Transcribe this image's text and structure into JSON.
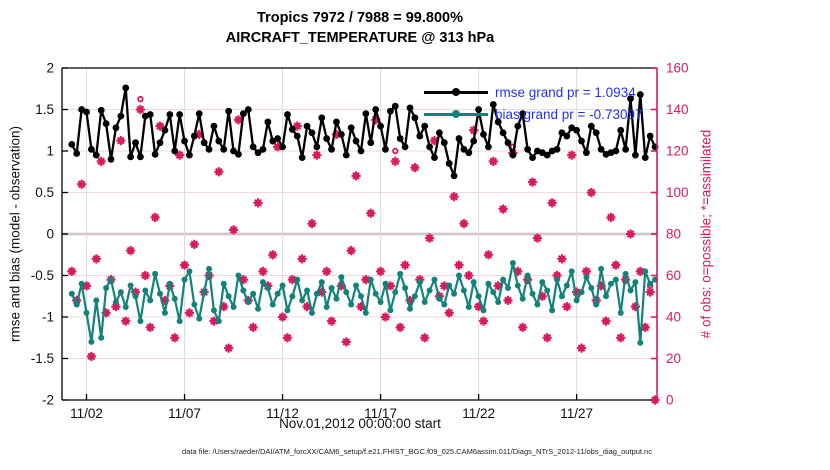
{
  "window": {
    "background": "#ffffff"
  },
  "chart_data": {
    "type": "line",
    "title": "Tropics 7972 / 7988 = 99.800%",
    "subtitle": "AIRCRAFT_TEMPERATURE @ 313 hPa",
    "stats": {
      "possible_total": 7988,
      "assimilated_total": 7972,
      "assimilated_pct": "99.800%"
    },
    "x_axis": {
      "label": "Nov.01,2012 00:00:00 start",
      "range_days": [
        -0.25,
        30.1
      ],
      "tick_days": [
        1,
        6,
        11,
        16,
        21,
        26
      ],
      "tick_labels": [
        "11/02",
        "11/07",
        "11/12",
        "11/17",
        "11/22",
        "11/27"
      ]
    },
    "y_left": {
      "label": "rmse and bias (model - observation)",
      "range": [
        -2,
        2
      ],
      "ticks": [
        {
          "v": 2,
          "label": "2"
        },
        {
          "v": 1.5,
          "label": "1.5"
        },
        {
          "v": 1,
          "label": "1"
        },
        {
          "v": 0.5,
          "label": "0.5"
        },
        {
          "v": 0,
          "label": "0"
        },
        {
          "v": -0.5,
          "label": "-0.5"
        },
        {
          "v": -1,
          "label": "-1"
        },
        {
          "v": -1.5,
          "label": "-1.5"
        },
        {
          "v": -2,
          "label": "-2"
        }
      ],
      "grid_values": [
        1.5,
        1,
        0.5,
        0,
        -0.5,
        -1,
        -1.5
      ]
    },
    "y_right": {
      "label": "# of obs: o=possible; *=assimilated",
      "range": [
        0,
        160
      ],
      "ticks": [
        {
          "v": 160,
          "label": "160"
        },
        {
          "v": 140,
          "label": "140"
        },
        {
          "v": 120,
          "label": "120"
        },
        {
          "v": 100,
          "label": "100"
        },
        {
          "v": 80,
          "label": "80"
        },
        {
          "v": 60,
          "label": "60"
        },
        {
          "v": 40,
          "label": "40"
        },
        {
          "v": 20,
          "label": "20"
        },
        {
          "v": 0,
          "label": "0"
        }
      ]
    },
    "legend": {
      "rmse_label": "rmse grand pr = 1.0934",
      "bias_label": "bias grand pr = -0.73097"
    },
    "colors": {
      "rmse": "#000000",
      "bias": "#12837B",
      "obs": "#D91A5F",
      "legend_text": "#2233EE",
      "h_grid": "#f2d7dc",
      "v_grid": "#dcdcdc",
      "zero_line": "#b5b5b5"
    },
    "t_start": 0.25,
    "t_step": 0.25,
    "series": {
      "rmse": {
        "name": "rmse",
        "axis": "left",
        "values": [
          1.08,
          0.97,
          1.5,
          1.47,
          1.02,
          0.95,
          1.49,
          1.33,
          0.9,
          1.28,
          1.42,
          1.76,
          0.93,
          1.1,
          0.93,
          1.42,
          1.44,
          0.96,
          1.1,
          1.25,
          1.44,
          1.0,
          1.44,
          1.12,
          0.95,
          1.18,
          1.45,
          1.1,
          1.02,
          1.3,
          1.12,
          1.02,
          1.48,
          1.0,
          0.96,
          1.45,
          1.5,
          1.05,
          0.98,
          1.02,
          1.35,
          1.12,
          1.15,
          1.05,
          1.44,
          1.26,
          1.18,
          0.92,
          1.3,
          1.22,
          1.05,
          1.4,
          1.15,
          1.02,
          1.35,
          1.2,
          0.95,
          1.28,
          1.12,
          1.0,
          1.45,
          1.1,
          1.5,
          1.3,
          1.02,
          1.48,
          1.54,
          1.15,
          1.05,
          1.52,
          1.4,
          1.18,
          1.3,
          1.05,
          0.92,
          1.22,
          1.1,
          0.85,
          0.7,
          1.15,
          1.02,
          0.98,
          1.12,
          1.5,
          1.2,
          1.05,
          1.56,
          1.35,
          1.22,
          1.1,
          0.95,
          1.3,
          1.45,
          1.02,
          0.92,
          1.0,
          0.98,
          0.95,
          1.0,
          1.02,
          1.22,
          1.18,
          1.28,
          1.25,
          1.12,
          0.98,
          1.3,
          1.22,
          1.02,
          0.96,
          0.98,
          1.0,
          1.25,
          1.02,
          1.63,
          0.95,
          1.68,
          0.92,
          1.18,
          1.05
        ]
      },
      "bias": {
        "name": "bias",
        "axis": "left",
        "values": [
          -0.72,
          -0.85,
          -0.6,
          -0.95,
          -1.3,
          -0.8,
          -1.25,
          -0.65,
          -0.55,
          -0.82,
          -0.7,
          -0.88,
          -0.62,
          -0.75,
          -1.05,
          -0.68,
          -0.8,
          -0.48,
          -0.72,
          -0.95,
          -0.6,
          -0.78,
          -1.05,
          -0.55,
          -0.45,
          -0.85,
          -1.02,
          -0.7,
          -0.42,
          -0.92,
          -1.05,
          -0.6,
          -0.75,
          -0.88,
          -0.5,
          -0.68,
          -0.82,
          -0.72,
          -0.9,
          -0.58,
          -0.65,
          -0.85,
          -0.72,
          -0.62,
          -0.92,
          -0.75,
          -0.55,
          -0.8,
          -0.68,
          -0.95,
          -0.72,
          -0.58,
          -0.88,
          -0.65,
          -0.78,
          -0.52,
          -0.7,
          -0.85,
          -0.62,
          -0.75,
          -0.95,
          -0.55,
          -0.72,
          -0.82,
          -0.6,
          -0.92,
          -0.7,
          -0.48,
          -0.65,
          -0.9,
          -0.75,
          -0.58,
          -0.82,
          -0.68,
          -0.55,
          -0.78,
          -0.85,
          -0.62,
          -0.72,
          -0.5,
          -0.68,
          -0.88,
          -0.58,
          -0.75,
          -0.92,
          -0.6,
          -0.7,
          -0.82,
          -0.55,
          -0.65,
          -0.35,
          -0.62,
          -0.78,
          -0.5,
          -0.72,
          -0.85,
          -0.58,
          -0.68,
          -0.92,
          -0.55,
          -0.75,
          -0.62,
          -0.45,
          -0.8,
          -0.7,
          -0.52,
          -0.65,
          -0.85,
          -0.42,
          -0.75,
          -0.6,
          -0.55,
          -0.95,
          -0.48,
          -0.68,
          -0.58,
          -1.31,
          -0.45,
          -0.6,
          -0.55
        ]
      },
      "possible": {
        "name": "possible",
        "marker": "o",
        "axis": "right",
        "values": [
          62,
          48,
          104,
          55,
          21,
          68,
          115,
          42,
          58,
          45,
          125,
          38,
          72,
          52,
          145,
          60,
          35,
          88,
          132,
          48,
          55,
          30,
          118,
          65,
          42,
          75,
          128,
          52,
          60,
          38,
          110,
          45,
          25,
          82,
          135,
          58,
          48,
          35,
          95,
          62,
          55,
          70,
          122,
          40,
          30,
          58,
          132,
          68,
          45,
          85,
          118,
          52,
          62,
          38,
          128,
          55,
          28,
          72,
          108,
          45,
          58,
          90,
          135,
          62,
          40,
          55,
          120,
          35,
          65,
          48,
          112,
          58,
          30,
          78,
          125,
          50,
          55,
          42,
          98,
          65,
          85,
          60,
          130,
          45,
          38,
          70,
          115,
          55,
          92,
          48,
          122,
          62,
          35,
          58,
          105,
          78,
          50,
          30,
          95,
          60,
          68,
          45,
          118,
          52,
          25,
          62,
          100,
          48,
          55,
          38,
          88,
          65,
          30,
          58,
          80,
          45,
          62,
          35,
          55,
          0
        ]
      },
      "assimilated": {
        "name": "assimilated",
        "marker": "*",
        "axis": "right",
        "values": [
          62,
          48,
          104,
          55,
          21,
          68,
          115,
          42,
          58,
          45,
          125,
          38,
          72,
          52,
          140,
          60,
          35,
          88,
          132,
          48,
          55,
          30,
          118,
          65,
          42,
          75,
          128,
          52,
          60,
          38,
          110,
          45,
          25,
          82,
          135,
          58,
          48,
          35,
          95,
          62,
          55,
          70,
          122,
          40,
          30,
          58,
          132,
          68,
          45,
          85,
          118,
          52,
          62,
          38,
          128,
          55,
          28,
          72,
          108,
          45,
          58,
          90,
          135,
          62,
          40,
          55,
          115,
          35,
          65,
          48,
          112,
          58,
          30,
          78,
          125,
          50,
          55,
          42,
          98,
          65,
          85,
          60,
          130,
          45,
          38,
          70,
          115,
          55,
          92,
          48,
          119,
          62,
          35,
          58,
          105,
          78,
          50,
          30,
          95,
          60,
          68,
          45,
          118,
          52,
          25,
          62,
          100,
          48,
          55,
          38,
          88,
          65,
          30,
          58,
          80,
          45,
          62,
          35,
          52,
          0
        ]
      }
    }
  },
  "footer": {
    "datafile": "data file: /Users/raeder/DAI/ATM_forcXX/CAM6_setup/f.e21.FHIST_BGC.f09_025.CAM6assim.011/Diags_NTrS_2012-11/obs_diag_output.nc"
  }
}
